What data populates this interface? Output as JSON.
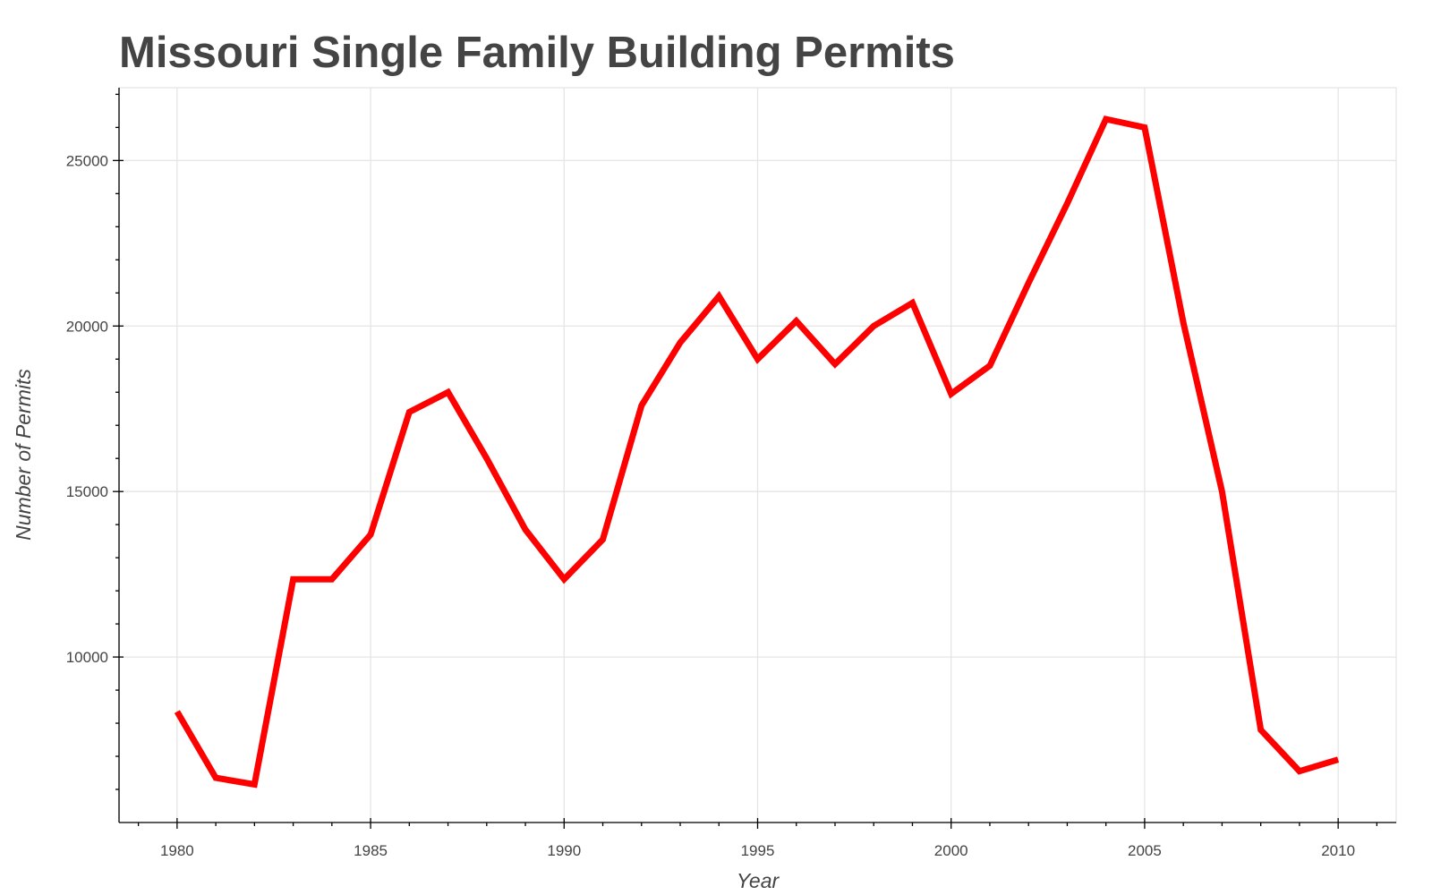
{
  "chart_data": {
    "type": "line",
    "title": "Missouri Single Family Building Permits",
    "xlabel": "Year",
    "ylabel": "Number of Permits",
    "xlim": [
      1978.5,
      2011.5
    ],
    "ylim": [
      5000,
      27200
    ],
    "x_ticks": [
      1980,
      1985,
      1990,
      1995,
      2000,
      2005,
      2010
    ],
    "x_tick_labels": [
      "1980",
      "1985",
      "1990",
      "1995",
      "2000",
      "2005",
      "2010"
    ],
    "y_ticks": [
      10000,
      15000,
      20000,
      25000
    ],
    "y_tick_labels": [
      "10000",
      "15000",
      "20000",
      "25000"
    ],
    "grid": true,
    "series": [
      {
        "color": "#ff0000",
        "x": [
          1980,
          1981,
          1982,
          1983,
          1984,
          1985,
          1986,
          1987,
          1988,
          1989,
          1990,
          1991,
          1992,
          1993,
          1994,
          1995,
          1996,
          1997,
          1998,
          1999,
          2000,
          2001,
          2002,
          2003,
          2004,
          2005,
          2006,
          2007,
          2008,
          2009,
          2010
        ],
        "values": [
          8350,
          6350,
          6150,
          12350,
          12350,
          13700,
          17400,
          18000,
          16000,
          13850,
          12350,
          13550,
          17600,
          19500,
          20900,
          19000,
          20150,
          18850,
          20000,
          20700,
          17950,
          18800,
          21300,
          23700,
          26250,
          26000,
          20100,
          15000,
          7800,
          6550,
          6900
        ]
      }
    ]
  }
}
